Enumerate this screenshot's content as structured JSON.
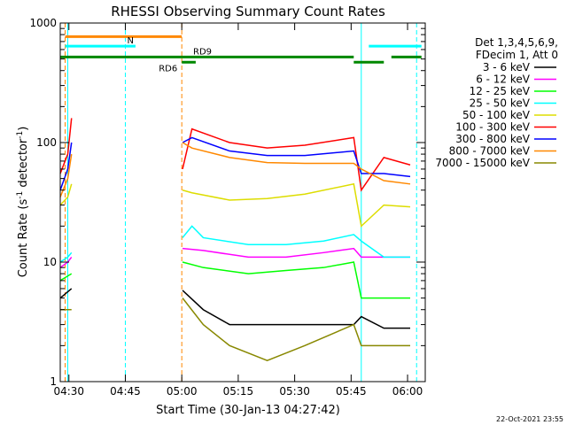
{
  "chart_data": {
    "type": "line",
    "title": "RHESSI Observing Summary Count Rates",
    "xlabel": "Start Time (30-Jan-13 04:27:42)",
    "ylabel_main": "Count Rate (s",
    "ylabel_sup1": "-1",
    "ylabel_mid": " detector",
    "ylabel_sup2": "-1",
    "ylabel_end": ")",
    "y_scale": "log",
    "ylim": [
      1,
      1000
    ],
    "xlim_minutes": [
      0,
      97
    ],
    "x_ticks": [
      {
        "t": 2.3,
        "label": "04:30"
      },
      {
        "t": 17.3,
        "label": "04:45"
      },
      {
        "t": 32.3,
        "label": "05:00"
      },
      {
        "t": 47.3,
        "label": "05:15"
      },
      {
        "t": 62.3,
        "label": "05:30"
      },
      {
        "t": 77.3,
        "label": "05:45"
      },
      {
        "t": 92.3,
        "label": "06:00"
      }
    ],
    "y_ticks": [
      {
        "v": 1,
        "label": "1"
      },
      {
        "v": 10,
        "label": "10"
      },
      {
        "v": 100,
        "label": "100"
      },
      {
        "v": 1000,
        "label": "1000"
      }
    ],
    "legend_header": [
      "Det 1,3,4,5,6,9,",
      "FDecim 1, Att 0"
    ],
    "legend_placement": "right",
    "series": [
      {
        "name": "3 - 6 keV",
        "color": "#000000",
        "values": [
          [
            0,
            5
          ],
          [
            3,
            6
          ],
          [
            32.5,
            5.8
          ],
          [
            38,
            4
          ],
          [
            45,
            3
          ],
          [
            55,
            3
          ],
          [
            65,
            3
          ],
          [
            78,
            3
          ],
          [
            80,
            3.5
          ],
          [
            86,
            2.8
          ],
          [
            93,
            2.8
          ]
        ]
      },
      {
        "name": "6 - 12 keV",
        "color": "#ff00ff",
        "values": [
          [
            0,
            9
          ],
          [
            2,
            10
          ],
          [
            3,
            11
          ],
          [
            32.5,
            13
          ],
          [
            38,
            12.5
          ],
          [
            50,
            11
          ],
          [
            60,
            11
          ],
          [
            70,
            12
          ],
          [
            78,
            13
          ],
          [
            80,
            11
          ],
          [
            86,
            11
          ],
          [
            93,
            11
          ]
        ]
      },
      {
        "name": "12 - 25 keV",
        "color": "#00ff00",
        "values": [
          [
            0,
            7
          ],
          [
            3,
            8
          ],
          [
            32.5,
            10
          ],
          [
            38,
            9
          ],
          [
            50,
            8
          ],
          [
            60,
            8.5
          ],
          [
            70,
            9
          ],
          [
            78,
            10
          ],
          [
            80,
            5
          ],
          [
            86,
            5
          ],
          [
            93,
            5
          ]
        ]
      },
      {
        "name": "25 - 50 keV",
        "color": "#00ffff",
        "values": [
          [
            0,
            10
          ],
          [
            2,
            11
          ],
          [
            3,
            12
          ],
          [
            32.5,
            16
          ],
          [
            35,
            20
          ],
          [
            38,
            16
          ],
          [
            50,
            14
          ],
          [
            60,
            14
          ],
          [
            70,
            15
          ],
          [
            78,
            17
          ],
          [
            80,
            15
          ],
          [
            86,
            11
          ],
          [
            93,
            11
          ]
        ]
      },
      {
        "name": "50 - 100 keV",
        "color": "#dddd00",
        "values": [
          [
            0,
            30
          ],
          [
            2,
            35
          ],
          [
            3,
            45
          ],
          [
            32.5,
            40
          ],
          [
            35,
            38
          ],
          [
            45,
            33
          ],
          [
            55,
            34
          ],
          [
            65,
            37
          ],
          [
            78,
            45
          ],
          [
            80,
            20
          ],
          [
            86,
            30
          ],
          [
            93,
            29
          ]
        ]
      },
      {
        "name": "100 - 300 keV",
        "color": "#ff0000",
        "values": [
          [
            0,
            55
          ],
          [
            2,
            80
          ],
          [
            3,
            160
          ],
          [
            32.5,
            60
          ],
          [
            35,
            130
          ],
          [
            45,
            100
          ],
          [
            55,
            90
          ],
          [
            65,
            95
          ],
          [
            78,
            110
          ],
          [
            80,
            40
          ],
          [
            86,
            75
          ],
          [
            93,
            65
          ]
        ]
      },
      {
        "name": "300 - 800 keV",
        "color": "#0000ff",
        "values": [
          [
            0,
            40
          ],
          [
            2,
            60
          ],
          [
            3,
            100
          ],
          [
            32.5,
            100
          ],
          [
            35,
            110
          ],
          [
            45,
            85
          ],
          [
            55,
            78
          ],
          [
            65,
            78
          ],
          [
            78,
            85
          ],
          [
            80,
            55
          ],
          [
            86,
            55
          ],
          [
            93,
            52
          ]
        ]
      },
      {
        "name": "800 - 7000 keV",
        "color": "#ff8800",
        "values": [
          [
            0,
            35
          ],
          [
            2,
            50
          ],
          [
            3,
            80
          ],
          [
            32.5,
            100
          ],
          [
            35,
            90
          ],
          [
            45,
            75
          ],
          [
            55,
            68
          ],
          [
            65,
            67
          ],
          [
            78,
            67
          ],
          [
            80,
            60
          ],
          [
            86,
            48
          ],
          [
            93,
            45
          ]
        ]
      },
      {
        "name": "7000 - 15000 keV",
        "color": "#888800",
        "values": [
          [
            0,
            4
          ],
          [
            3,
            4
          ],
          [
            32.5,
            5
          ],
          [
            38,
            3
          ],
          [
            45,
            2
          ],
          [
            55,
            1.5
          ],
          [
            65,
            2
          ],
          [
            78,
            3
          ],
          [
            80,
            2
          ],
          [
            86,
            2
          ],
          [
            93,
            2
          ]
        ]
      }
    ],
    "state_bars": [
      {
        "label": "",
        "color": "#ff8800",
        "y": 770,
        "segments": [
          [
            1.3,
            32.3
          ]
        ]
      },
      {
        "label": "N",
        "color": "#00ffff",
        "y": 640,
        "segments": [
          [
            1.3,
            20
          ],
          [
            82,
            96
          ]
        ]
      },
      {
        "label": "RD9",
        "color": "#008800",
        "y": 520,
        "segments": [
          [
            0,
            78
          ],
          [
            88,
            96
          ]
        ]
      },
      {
        "label": "RD6",
        "color": "#008800",
        "y": 470,
        "segments": [
          [
            32.3,
            36
          ],
          [
            78,
            86
          ]
        ]
      }
    ],
    "vertical_lines": [
      {
        "t": 1.3,
        "color": "#ff8800",
        "style": "dashed"
      },
      {
        "t": 2.0,
        "color": "#00ffff",
        "style": "solid"
      },
      {
        "t": 17.3,
        "color": "#00ffff",
        "style": "dashed"
      },
      {
        "t": 32.3,
        "color": "#ff8800",
        "style": "dashed"
      },
      {
        "t": 80.0,
        "color": "#00ffff",
        "style": "solid"
      },
      {
        "t": 94.7,
        "color": "#00ffff",
        "style": "dashed"
      }
    ],
    "footer": "22-Oct-2021 23:55",
    "grid": false
  }
}
